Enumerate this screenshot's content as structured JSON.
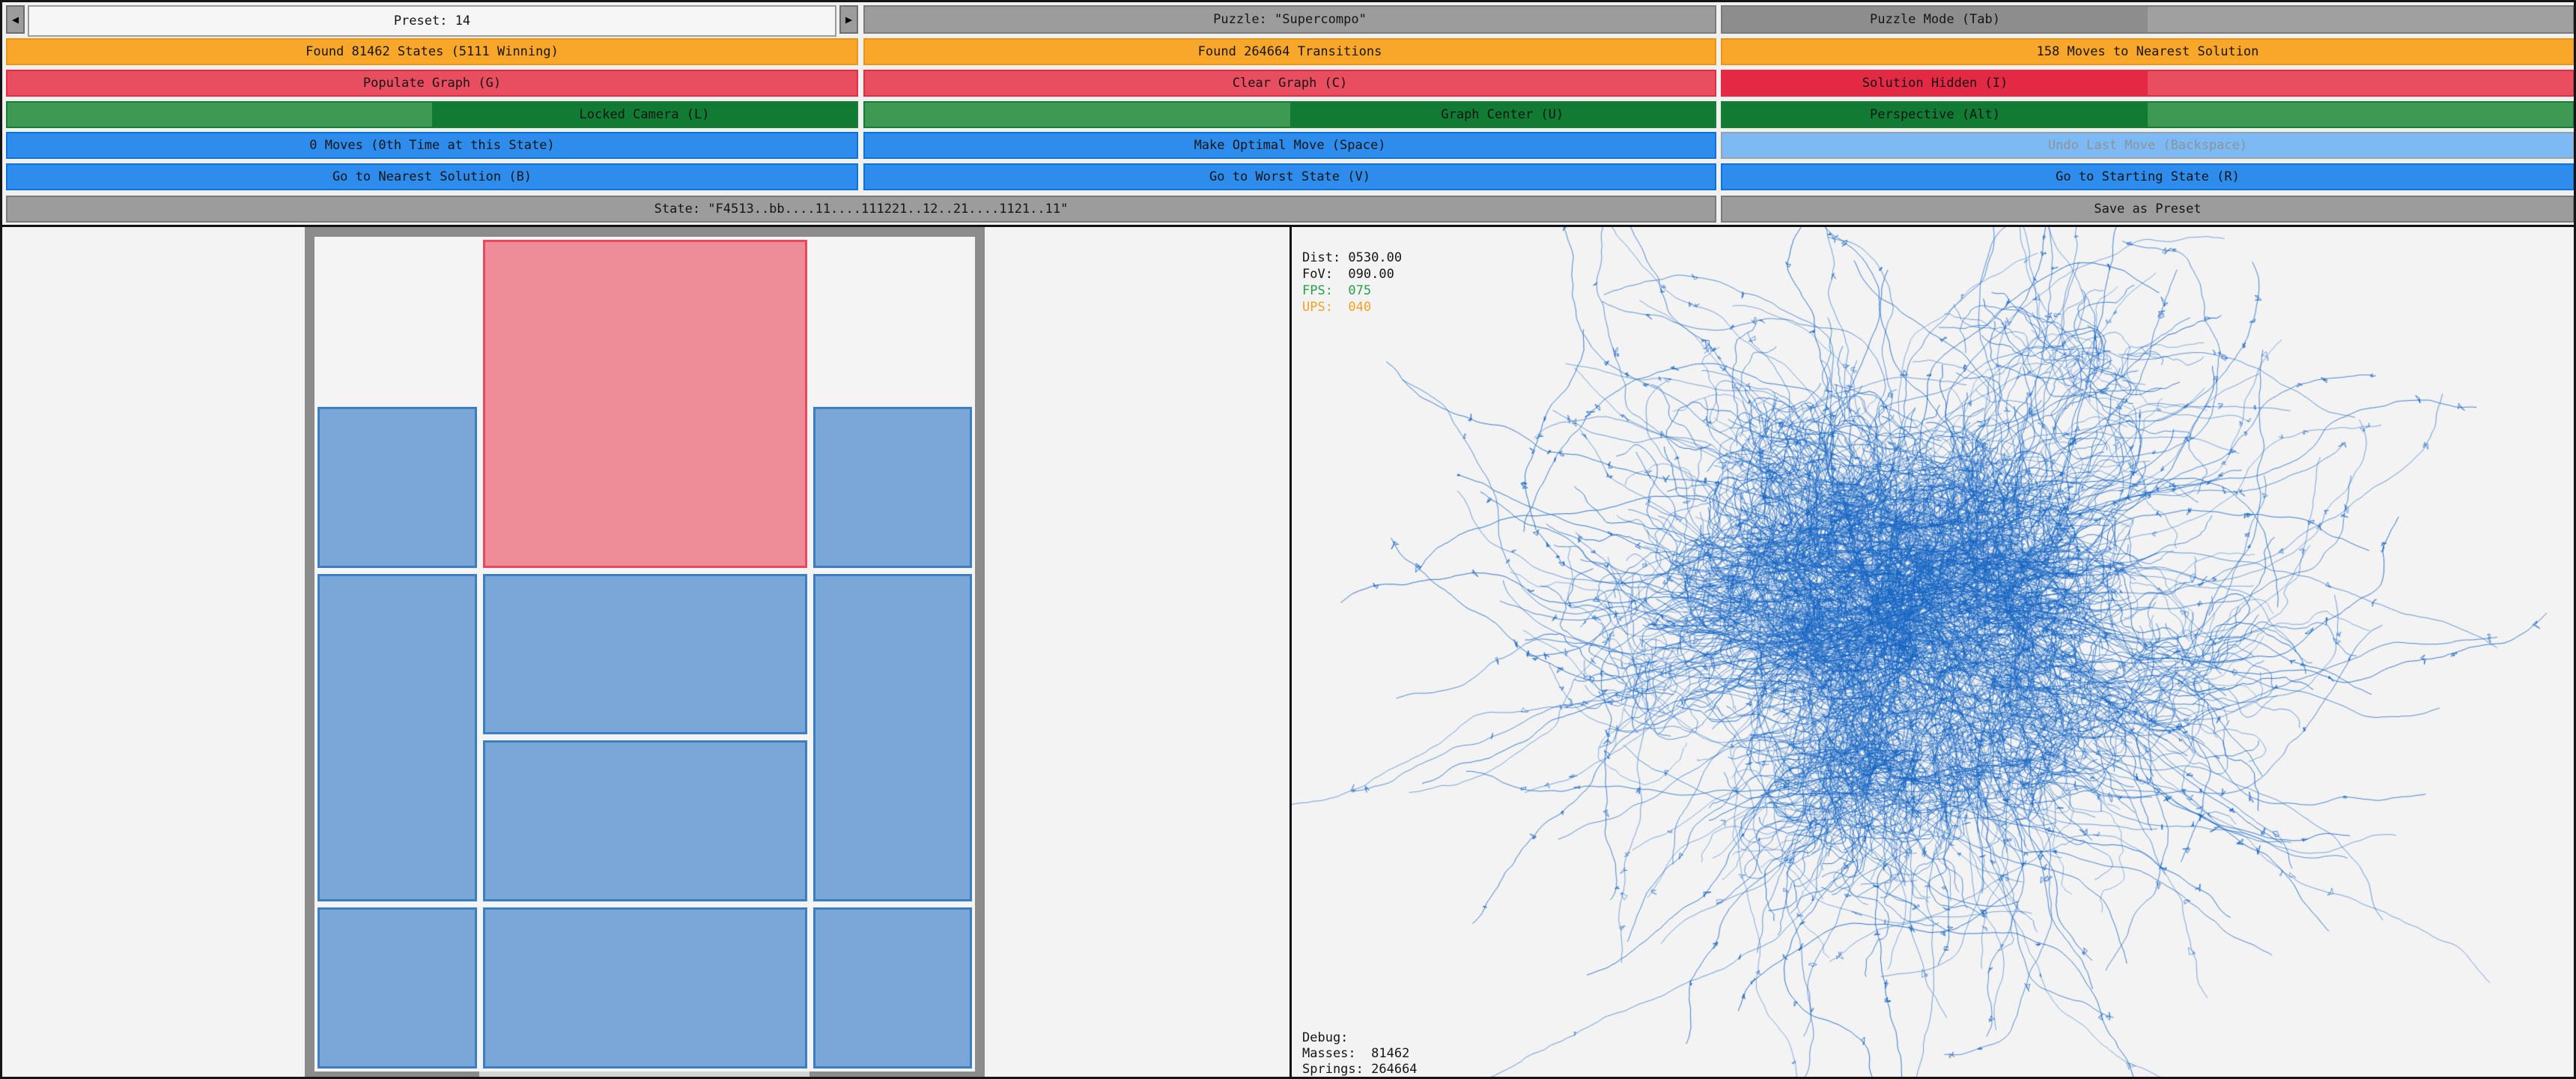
{
  "toolbar": {
    "preset": {
      "label": "Preset: 14",
      "prev_icon": "◀",
      "next_icon": "▶"
    },
    "puzzle_name": "Puzzle: \"Supercompo\"",
    "puzzle_mode": "Puzzle Mode (Tab)",
    "stats": {
      "states": "Found 81462 States (5111 Winning)",
      "transitions": "Found 264664 Transitions",
      "moves_to_solution": "158 Moves to Nearest Solution"
    },
    "graph_actions": {
      "populate": "Populate Graph (G)",
      "clear": "Clear Graph (C)",
      "solution": "Solution Hidden (I)"
    },
    "camera": {
      "locked": "Locked Camera (L)",
      "center": "Graph Center (U)",
      "perspective": "Perspective (Alt)"
    },
    "moves": {
      "counter": "0 Moves (0th Time at this State)",
      "optimal": "Make Optimal Move (Space)",
      "undo": "Undo Last Move (Backspace)"
    },
    "nav": {
      "nearest": "Go to Nearest Solution (B)",
      "worst": "Go to Worst State (V)",
      "start": "Go to Starting State (R)"
    },
    "state_display": "State: \"F4513..bb....11....111221..12..21....1121..11\"",
    "save_preset": "Save as Preset"
  },
  "hud": {
    "dist_label": "Dist: ",
    "dist_value": "0530.00",
    "fov_label": "FoV:  ",
    "fov_value": "090.00",
    "fps_label": "FPS:  ",
    "fps_value": "075",
    "ups_label": "UPS:  ",
    "ups_value": "040"
  },
  "debug": {
    "title": "Debug:",
    "masses_label": "Masses:  ",
    "masses_value": "81462",
    "springs_label": "Springs: ",
    "springs_value": "264664"
  },
  "board": {
    "cols": 4,
    "rows": 5,
    "exit_columns": [
      1,
      2
    ],
    "pieces": [
      {
        "kind": "target",
        "col": 1,
        "row": 0,
        "w": 2,
        "h": 2
      },
      {
        "kind": "normal",
        "col": 0,
        "row": 1,
        "w": 1,
        "h": 1
      },
      {
        "kind": "normal",
        "col": 3,
        "row": 1,
        "w": 1,
        "h": 1
      },
      {
        "kind": "normal",
        "col": 0,
        "row": 2,
        "w": 1,
        "h": 2
      },
      {
        "kind": "normal",
        "col": 1,
        "row": 2,
        "w": 2,
        "h": 1
      },
      {
        "kind": "normal",
        "col": 1,
        "row": 3,
        "w": 2,
        "h": 1
      },
      {
        "kind": "normal",
        "col": 3,
        "row": 2,
        "w": 1,
        "h": 2
      },
      {
        "kind": "normal",
        "col": 0,
        "row": 4,
        "w": 1,
        "h": 1
      },
      {
        "kind": "normal",
        "col": 1,
        "row": 4,
        "w": 2,
        "h": 1
      },
      {
        "kind": "normal",
        "col": 3,
        "row": 4,
        "w": 1,
        "h": 1
      }
    ]
  },
  "graph": {
    "masses": 81462,
    "springs": 264664,
    "line_color": "#1565C4",
    "background": "#f3f3f3"
  },
  "colors": {
    "accent_orange": "#F9A72B",
    "accent_red": "#E94D60",
    "accent_red_active": "#E32943",
    "accent_green_light": "#3E9A53",
    "accent_green_dark": "#117B33",
    "accent_blue": "#2E8CEC",
    "accent_blue_disabled": "#7DB9F2",
    "bar_gray": "#9C9C9C",
    "piece_target_fill": "#EE8D97",
    "piece_target_border": "#E8495E",
    "piece_normal_fill": "#7AA7D7",
    "piece_normal_border": "#3B7EC1"
  }
}
